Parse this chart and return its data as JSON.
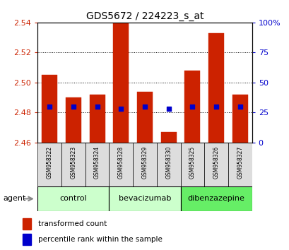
{
  "title": "GDS5672 / 224223_s_at",
  "samples": [
    "GSM958322",
    "GSM958323",
    "GSM958324",
    "GSM958328",
    "GSM958329",
    "GSM958330",
    "GSM958325",
    "GSM958326",
    "GSM958327"
  ],
  "transformed_counts": [
    2.505,
    2.49,
    2.492,
    2.54,
    2.494,
    2.467,
    2.508,
    2.533,
    2.492
  ],
  "percentile_ranks": [
    30,
    30,
    30,
    28,
    30,
    28,
    30,
    30,
    30
  ],
  "baseline": 2.46,
  "ylim_left": [
    2.46,
    2.54
  ],
  "ylim_right": [
    0,
    100
  ],
  "yticks_left": [
    2.46,
    2.48,
    2.5,
    2.52,
    2.54
  ],
  "yticks_right": [
    0,
    25,
    50,
    75,
    100
  ],
  "groups": [
    {
      "label": "control",
      "indices": [
        0,
        1,
        2
      ],
      "color": "#ccffcc"
    },
    {
      "label": "bevacizumab",
      "indices": [
        3,
        4,
        5
      ],
      "color": "#ccffcc"
    },
    {
      "label": "dibenzazepine",
      "indices": [
        6,
        7,
        8
      ],
      "color": "#66ee66"
    }
  ],
  "bar_color": "#cc2200",
  "dot_color": "#0000cc",
  "bar_width": 0.65,
  "legend_items": [
    {
      "label": "transformed count",
      "color": "#cc2200"
    },
    {
      "label": "percentile rank within the sample",
      "color": "#0000cc"
    }
  ],
  "left_axis_color": "#cc2200",
  "right_axis_color": "#0000cc"
}
